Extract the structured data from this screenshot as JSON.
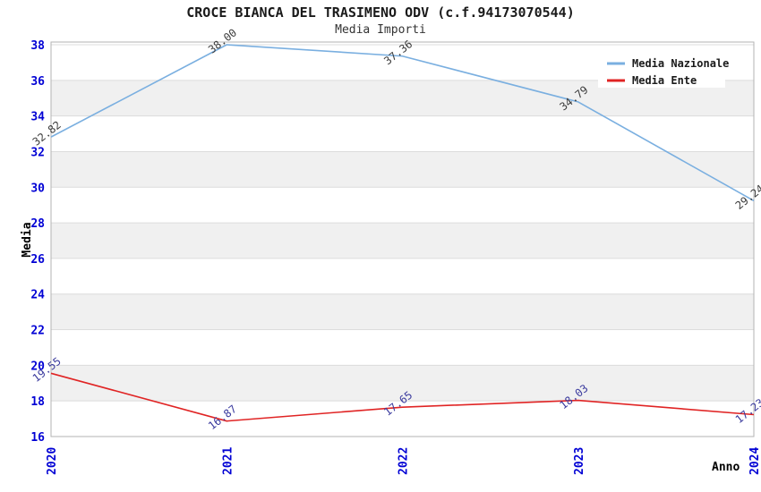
{
  "chart_data": {
    "type": "line",
    "title": "CROCE BIANCA DEL TRASIMENO ODV (c.f.94173070544)",
    "subtitle": "Media Importi",
    "xlabel": "Anno",
    "ylabel": "Media",
    "categories": [
      "2020",
      "2021",
      "2022",
      "2023",
      "2024"
    ],
    "series": [
      {
        "name": "Media Nazionale",
        "color": "#7aafe0",
        "values": [
          32.82,
          38.0,
          37.36,
          34.79,
          29.24
        ],
        "point_labels": [
          "32.82",
          "38.00",
          "37.36",
          "34.79",
          "29.24"
        ],
        "point_label_color": "#3c3c3c"
      },
      {
        "name": "Media Ente",
        "color": "#e02424",
        "values": [
          19.55,
          16.87,
          17.65,
          18.03,
          17.23
        ],
        "point_labels": [
          "19.55",
          "16.87",
          "17.65",
          "18.03",
          "17.23"
        ],
        "point_label_color": "#3b3b9e"
      }
    ],
    "ylim": [
      16,
      38
    ],
    "ytick_step": 2,
    "yticks": [
      "16",
      "18",
      "20",
      "22",
      "24",
      "26",
      "28",
      "30",
      "32",
      "34",
      "36",
      "38"
    ],
    "legend_position": "top-right",
    "grid": "horizontal-bands",
    "colors": {
      "tick_label": "#0000d4",
      "band_gray": "#f0f0f0",
      "band_white": "#ffffff",
      "gridline": "#dcdcdc",
      "plot_border": "#b3b3b3",
      "axis_title": "#000000",
      "legend_bg": "#ffffff",
      "legend_text": "#1a1a1a"
    }
  }
}
